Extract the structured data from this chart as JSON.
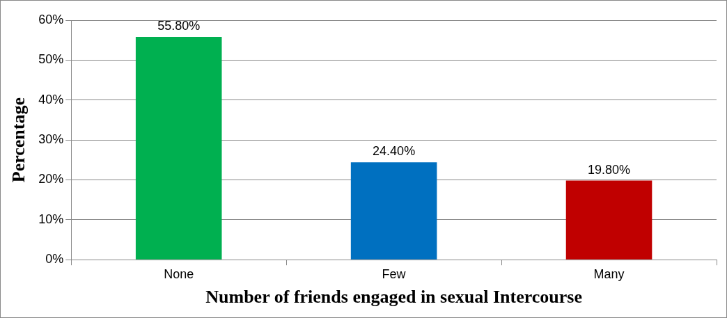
{
  "chart_data": {
    "type": "bar",
    "xlabel": "Number of friends engaged in sexual Intercourse",
    "ylabel": "Percentage",
    "categories": [
      "None",
      "Few",
      "Many"
    ],
    "values": [
      55.8,
      24.4,
      19.8
    ],
    "colors": [
      "#00b050",
      "#0070c0",
      "#c00000"
    ],
    "value_labels": [
      "55.80%",
      "24.40%",
      "19.80%"
    ],
    "ylim": [
      0,
      60
    ],
    "yticks": [
      {
        "value": 0,
        "label": "0%"
      },
      {
        "value": 10,
        "label": "10%"
      },
      {
        "value": 20,
        "label": "20%"
      },
      {
        "value": 30,
        "label": "30%"
      },
      {
        "value": 40,
        "label": "40%"
      },
      {
        "value": 50,
        "label": "50%"
      },
      {
        "value": 60,
        "label": "60%"
      }
    ],
    "grid": "y",
    "legend": false
  }
}
